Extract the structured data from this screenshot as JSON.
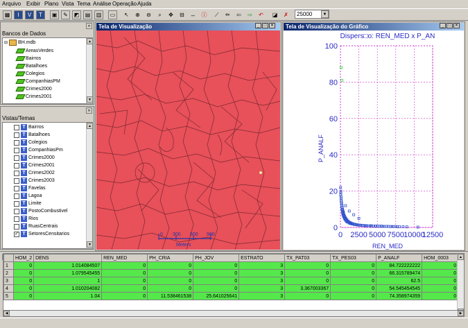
{
  "menu": [
    "Arquivo",
    "Exibir",
    "Plano",
    "Vista",
    "Tema",
    "Análise",
    "Operação",
    "Ajuda"
  ],
  "toolbar": {
    "scale_value": "25000"
  },
  "databases_panel": {
    "title": "Bancos de Dados",
    "root": "BH.mdb",
    "layers": [
      "AreasVerdes",
      "Bairros",
      "Batalhoes",
      "Colegios",
      "CompanhiasPM",
      "Crimes2000",
      "Crimes2001"
    ]
  },
  "views_panel": {
    "title": "Vistas/Temas",
    "themes": [
      {
        "name": "Bairros",
        "checked": false
      },
      {
        "name": "Batalhoes",
        "checked": false
      },
      {
        "name": "Colegios",
        "checked": false
      },
      {
        "name": "CompanhiasPm",
        "checked": false
      },
      {
        "name": "Crimes2000",
        "checked": false
      },
      {
        "name": "Crimes2001",
        "checked": false
      },
      {
        "name": "Crimes2002",
        "checked": false
      },
      {
        "name": "Crimes2003",
        "checked": false
      },
      {
        "name": "Favelas",
        "checked": false
      },
      {
        "name": "Lagoa",
        "checked": false
      },
      {
        "name": "Limite",
        "checked": false
      },
      {
        "name": "PostoCombustivel",
        "checked": false
      },
      {
        "name": "Rios",
        "checked": false
      },
      {
        "name": "RuasCentrais",
        "checked": false
      },
      {
        "name": "SetoresCensitarios",
        "checked": true
      }
    ]
  },
  "map_window": {
    "title": "Tela de Visualização",
    "scale_labels": [
      "0",
      "300",
      "600",
      "900"
    ],
    "scale_unit": "Meters",
    "fill_color": "#e8505a"
  },
  "chart_window": {
    "title": "Tela de Visualização do Gráfico"
  },
  "chart_data": {
    "type": "scatter",
    "title": "Dispers□o: REN_MED x P_AN",
    "xlabel": "REN_MED",
    "ylabel": "P_ANALF",
    "xlim": [
      0,
      12500
    ],
    "ylim": [
      0,
      100
    ],
    "x_ticks": [
      "0",
      "2500",
      "5000",
      "7500",
      "10000",
      "12500"
    ],
    "y_ticks": [
      "0",
      "20",
      "40",
      "60",
      "80",
      "100"
    ],
    "grid": true,
    "series": [
      {
        "color": "#3355cc",
        "x": [
          20,
          50,
          80,
          100,
          120,
          150,
          180,
          200,
          230,
          260,
          300,
          330,
          360,
          400,
          450,
          500,
          560,
          620,
          700,
          800,
          900,
          1000,
          1150,
          1300,
          1500,
          1700,
          1900,
          2100,
          2400,
          2700,
          3000,
          3300,
          3600,
          4000,
          4500,
          5000,
          5500,
          6000,
          6500,
          7000,
          7500,
          8000,
          9000,
          10500,
          60,
          90,
          140,
          210,
          280,
          350,
          420,
          520,
          640,
          760,
          880,
          1050,
          1250,
          1450,
          1650,
          1900,
          2200,
          2600,
          3100,
          3500,
          4200,
          4800,
          5300,
          5800,
          6800,
          7200,
          7700,
          8500,
          40,
          110,
          170,
          240,
          310,
          380,
          470,
          580,
          680,
          820,
          950,
          1100,
          1350,
          1600,
          2000,
          2300,
          2800,
          3400,
          4100,
          4700,
          5600,
          6300,
          700,
          1200,
          1800,
          2500
        ],
        "y": [
          22,
          19,
          17,
          15,
          14,
          13,
          12,
          11,
          10,
          9,
          8,
          7.5,
          7,
          6.5,
          6,
          5.5,
          5,
          4.5,
          4,
          3.5,
          3,
          3,
          2.5,
          2.2,
          2,
          1.8,
          1.6,
          1.5,
          1.3,
          1.2,
          1.1,
          1,
          1,
          0.9,
          0.8,
          0.8,
          0.7,
          0.6,
          0.6,
          0.5,
          0.5,
          0.4,
          0.3,
          0.2,
          20,
          16,
          14,
          12,
          10,
          9,
          8,
          6.5,
          5.5,
          4.8,
          4.2,
          3.5,
          2.8,
          2.4,
          2.1,
          1.8,
          1.5,
          1.3,
          1.1,
          1,
          0.9,
          0.8,
          0.7,
          0.6,
          0.5,
          0.5,
          0.4,
          0.4,
          18,
          15,
          13,
          11,
          9.5,
          8.5,
          7,
          6,
          5,
          4,
          3.5,
          3,
          2.5,
          2,
          1.7,
          1.4,
          1.2,
          1,
          0.9,
          0.8,
          0.7,
          0.6,
          12,
          9,
          7,
          5
        ]
      },
      {
        "color": "#44cc44",
        "x": [
          100,
          200
        ],
        "y": [
          88,
          81
        ]
      }
    ]
  },
  "table": {
    "headers": [
      "",
      "HOM_2",
      "DENS",
      "REN_MED",
      "PH_CRIA",
      "PH_JOV",
      "ESTRATO",
      "TX_PAT03",
      "TX_PES03",
      "P_ANALF",
      "HOM_0003"
    ],
    "rows": [
      [
        "1",
        "0",
        "1.014084507",
        "0",
        "0",
        "0",
        "3",
        "0",
        "0",
        "84.722222222",
        "0"
      ],
      [
        "2",
        "0",
        "1.079545455",
        "0",
        "0",
        "0",
        "3",
        "0",
        "0",
        "66.315789474",
        "0"
      ],
      [
        "3",
        "0",
        "1",
        "0",
        "0",
        "0",
        "3",
        "0",
        "0",
        "62.5",
        "0"
      ],
      [
        "4",
        "0",
        "1.010204082",
        "0",
        "0",
        "0",
        "3",
        "3.367003367",
        "0",
        "54.545454545",
        "0"
      ],
      [
        "5",
        "0",
        "1.04",
        "0",
        "11.538461538",
        "25.641025641",
        "3",
        "0",
        "0",
        "74.358974359",
        "0"
      ]
    ]
  }
}
